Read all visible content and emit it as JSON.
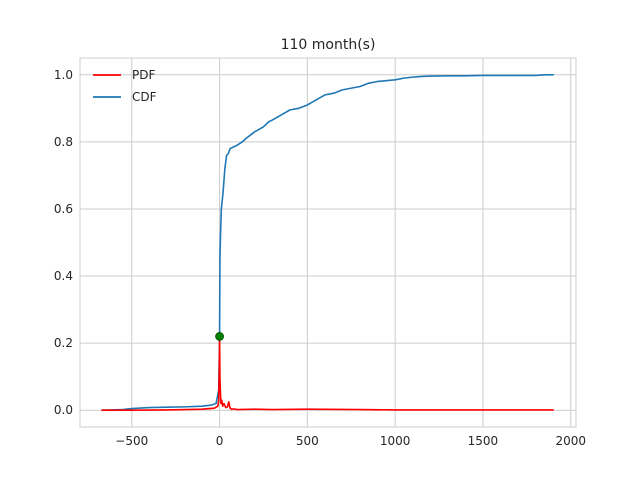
{
  "chart_data": {
    "type": "line",
    "title": "110 month(s)",
    "xlabel": "",
    "ylabel": "",
    "xlim": [
      -795,
      2030
    ],
    "ylim": [
      -0.05,
      1.05
    ],
    "xticks": [
      -500,
      0,
      500,
      1000,
      1500,
      2000
    ],
    "xtick_labels": [
      "−500",
      "0",
      "500",
      "1000",
      "1500",
      "2000"
    ],
    "yticks": [
      0.0,
      0.2,
      0.4,
      0.6,
      0.8,
      1.0
    ],
    "ytick_labels": [
      "0.0",
      "0.2",
      "0.4",
      "0.6",
      "0.8",
      "1.0"
    ],
    "grid": true,
    "legend_position": "top-left",
    "series": [
      {
        "name": "PDF",
        "color": "#ff0000",
        "x": [
          -670,
          -500,
          -300,
          -100,
          -30,
          -10,
          -5,
          -2,
          0,
          2,
          5,
          8,
          12,
          18,
          25,
          35,
          45,
          52,
          60,
          68,
          80,
          100,
          200,
          300,
          500,
          800,
          1000,
          1200,
          1500,
          1900
        ],
        "y": [
          0.0,
          0.0,
          0.001,
          0.003,
          0.006,
          0.012,
          0.03,
          0.12,
          0.215,
          0.1,
          0.05,
          0.02,
          0.03,
          0.012,
          0.02,
          0.008,
          0.01,
          0.025,
          0.006,
          0.003,
          0.004,
          0.002,
          0.003,
          0.002,
          0.003,
          0.002,
          0.001,
          0.001,
          0.001,
          0.001
        ]
      },
      {
        "name": "CDF",
        "color": "#1f77b4",
        "x": [
          -670,
          -550,
          -500,
          -400,
          -300,
          -200,
          -100,
          -50,
          -20,
          -5,
          0,
          2,
          5,
          10,
          20,
          30,
          40,
          50,
          60,
          80,
          100,
          130,
          150,
          200,
          250,
          280,
          300,
          350,
          400,
          450,
          500,
          550,
          600,
          650,
          700,
          800,
          850,
          900,
          1000,
          1050,
          1100,
          1150,
          1200,
          1300,
          1400,
          1500,
          1600,
          1700,
          1800,
          1850,
          1900
        ],
        "y": [
          0.0,
          0.002,
          0.005,
          0.008,
          0.009,
          0.01,
          0.012,
          0.015,
          0.02,
          0.06,
          0.22,
          0.45,
          0.52,
          0.6,
          0.65,
          0.72,
          0.76,
          0.765,
          0.78,
          0.785,
          0.79,
          0.8,
          0.81,
          0.83,
          0.845,
          0.86,
          0.865,
          0.88,
          0.895,
          0.9,
          0.91,
          0.925,
          0.94,
          0.945,
          0.955,
          0.965,
          0.975,
          0.98,
          0.985,
          0.99,
          0.993,
          0.995,
          0.996,
          0.997,
          0.997,
          0.998,
          0.998,
          0.998,
          0.998,
          1.0,
          1.0
        ]
      }
    ],
    "marker": {
      "x": 0,
      "y": 0.22,
      "color": "#008000"
    }
  }
}
